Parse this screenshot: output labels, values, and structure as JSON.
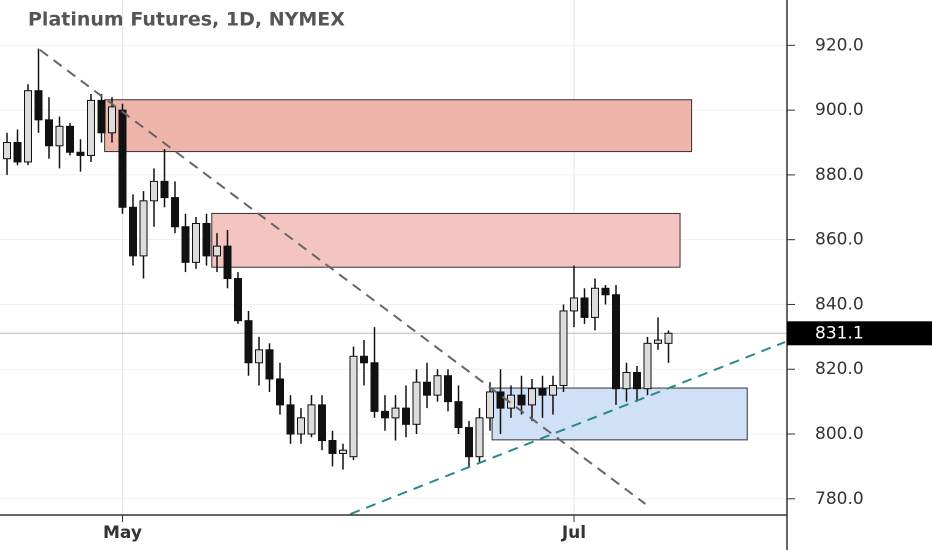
{
  "chart_data": {
    "type": "candlestick",
    "title": "Platinum Futures, 1D, NYMEX",
    "categories": [
      null,
      null,
      null,
      null,
      null,
      null,
      null,
      null,
      null,
      null,
      null,
      "May",
      null,
      null,
      null,
      null,
      null,
      null,
      null,
      null,
      null,
      null,
      null,
      null,
      null,
      null,
      null,
      null,
      null,
      null,
      null,
      null,
      null,
      null,
      null,
      null,
      null,
      null,
      null,
      null,
      null,
      null,
      null,
      null,
      null,
      null,
      null,
      null,
      null,
      null,
      null,
      null,
      null,
      null,
      "Jul",
      null,
      null,
      null,
      null,
      null,
      null,
      null,
      null,
      null
    ],
    "open": [
      885,
      890,
      884,
      906,
      897,
      889,
      895,
      887,
      886,
      903,
      893,
      900,
      870,
      855,
      872,
      878,
      873,
      864,
      853,
      865,
      855,
      858,
      848,
      835,
      822,
      826,
      817,
      809,
      800,
      800,
      809,
      798,
      794,
      793,
      824,
      822,
      807,
      805,
      808,
      803,
      816,
      812,
      818,
      810,
      802,
      793,
      805,
      813,
      808,
      812,
      809,
      814,
      812,
      815,
      838,
      842,
      836,
      845,
      843,
      814,
      819,
      814,
      828,
      828
    ],
    "high": [
      893,
      894,
      908,
      919,
      904,
      898,
      896,
      891,
      905,
      905,
      904,
      902,
      874,
      875,
      882,
      888,
      878,
      868,
      867,
      868,
      862,
      863,
      850,
      838,
      830,
      828,
      822,
      812,
      808,
      812,
      812,
      801,
      797,
      827,
      829,
      833,
      812,
      812,
      815,
      820,
      822,
      820,
      820,
      815,
      804,
      808,
      816,
      820,
      815,
      818,
      817,
      818,
      818,
      840,
      852,
      845,
      848,
      846,
      846,
      822,
      821,
      830,
      836,
      832
    ],
    "low": [
      880,
      883,
      883,
      893,
      885,
      882,
      886,
      881,
      884,
      890,
      890,
      868,
      852,
      848,
      864,
      870,
      862,
      850,
      851,
      852,
      850,
      845,
      834,
      818,
      815,
      813,
      806,
      797,
      797,
      799,
      795,
      790,
      789,
      792,
      815,
      805,
      801,
      798,
      799,
      800,
      808,
      810,
      807,
      800,
      790,
      791,
      801,
      800,
      805,
      806,
      804,
      805,
      806,
      813,
      833,
      834,
      832,
      840,
      809,
      810,
      810,
      812,
      826,
      822
    ],
    "close": [
      890,
      884,
      906,
      897,
      889,
      895,
      887,
      886,
      903,
      893,
      901,
      870,
      855,
      872,
      878,
      873,
      864,
      853,
      865,
      855,
      858,
      848,
      835,
      822,
      826,
      817,
      809,
      800,
      805,
      809,
      798,
      794,
      795,
      824,
      822,
      807,
      805,
      808,
      803,
      816,
      812,
      818,
      810,
      802,
      793,
      805,
      813,
      808,
      812,
      809,
      814,
      812,
      815,
      838,
      842,
      836,
      845,
      843,
      814,
      819,
      814,
      828,
      829,
      831.1
    ],
    "up_color": "#dcdcdc",
    "down_color": "#111111",
    "ylim": [
      775,
      934
    ],
    "yticks": [
      {
        "value": 780,
        "label": "780.0"
      },
      {
        "value": 800,
        "label": "800.0"
      },
      {
        "value": 820,
        "label": "820.0"
      },
      {
        "value": 840,
        "label": "840.0"
      },
      {
        "value": 860,
        "label": "860.0"
      },
      {
        "value": 880,
        "label": "880.0"
      },
      {
        "value": 900,
        "label": "900.0"
      },
      {
        "value": 920,
        "label": "920.0"
      }
    ],
    "grid": true,
    "last_price": 831.1,
    "zones": [
      {
        "top": 903.2,
        "bottom": 887.2,
        "start": 9.3,
        "end": 65.2,
        "color": "#efb5ab"
      },
      {
        "top": 868.1,
        "bottom": 851.5,
        "start": 19.5,
        "end": 64.1,
        "color": "#f4c4c0"
      },
      {
        "top": 814.2,
        "bottom": 798.2,
        "start": 46.2,
        "end": 70.5,
        "color": "#cfe0f7"
      }
    ],
    "trendlines": [
      {
        "x": [
          3.14,
          60.8
        ],
        "y": [
          918.6,
          778.4
        ],
        "color": "#666666"
      },
      {
        "x": [
          32.7,
          74.1
        ],
        "y": [
          775.3,
          828.4
        ],
        "color": "#2a8a8a"
      }
    ]
  }
}
